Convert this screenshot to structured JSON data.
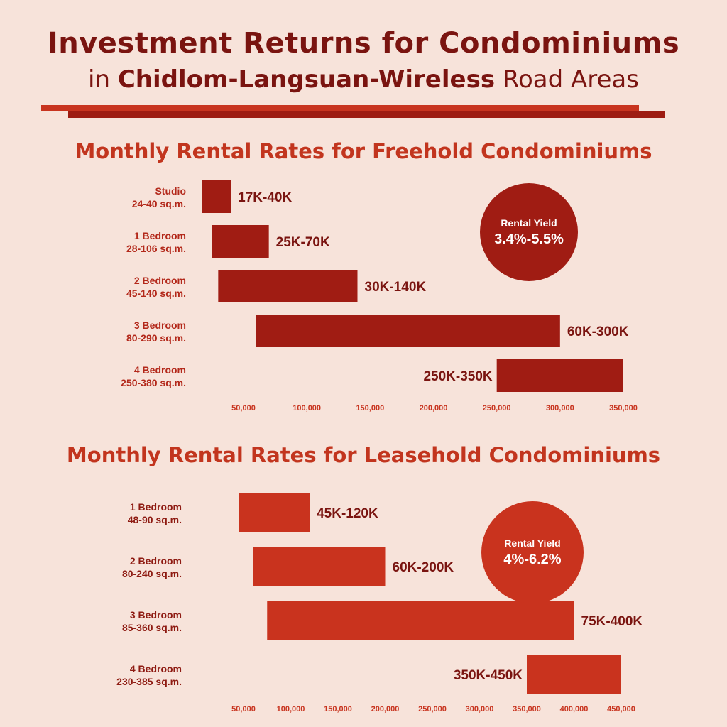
{
  "header": {
    "title_line1": "Investment Returns for Condominiums",
    "title_line2_prefix": "in ",
    "title_line2_bold": "Chidlom-Langsuan-Wireless",
    "title_line2_suffix": " Road Areas"
  },
  "colors": {
    "freehold_bar": "#a01c13",
    "leasehold_bar": "#c9331e",
    "freehold_label": "#b3281a",
    "leasehold_label": "#8e1b12",
    "value_label": "#7a1410",
    "tick": "#c8341f"
  },
  "chart_data": [
    {
      "type": "bar",
      "orientation": "horizontal-range",
      "title": "Monthly Rental Rates for Freehold Condominiums",
      "rental_yield": {
        "label": "Rental Yield",
        "value": "3.4%-5.5%"
      },
      "xlim": [
        25000,
        370000
      ],
      "x_ticks": [
        50000,
        100000,
        150000,
        200000,
        250000,
        300000,
        350000
      ],
      "x_tick_labels": [
        "50,000",
        "100,000",
        "150,000",
        "200,000",
        "250,000",
        "300,000",
        "350,000"
      ],
      "categories": [
        {
          "name": "Studio",
          "size": "24-40 sq.m."
        },
        {
          "name": "1 Bedroom",
          "size": "28-106 sq.m."
        },
        {
          "name": "2 Bedroom",
          "size": "45-140 sq.m."
        },
        {
          "name": "3 Bedroom",
          "size": "80-290 sq.m."
        },
        {
          "name": "4 Bedroom",
          "size": "250-380 sq.m."
        }
      ],
      "ranges": [
        [
          17000,
          40000
        ],
        [
          25000,
          70000
        ],
        [
          30000,
          140000
        ],
        [
          60000,
          300000
        ],
        [
          250000,
          350000
        ]
      ],
      "range_labels": [
        "17K-40K",
        "25K-70K",
        "30K-140K",
        "60K-300K",
        "250K-350K"
      ],
      "label_position": [
        "right",
        "right",
        "right",
        "right",
        "left"
      ]
    },
    {
      "type": "bar",
      "orientation": "horizontal-range",
      "title": "Monthly Rental Rates for Leasehold Condominiums",
      "rental_yield": {
        "label": "Rental Yield",
        "value": "4%-6.2%"
      },
      "xlim": [
        30000,
        470000
      ],
      "x_ticks": [
        50000,
        100000,
        150000,
        200000,
        250000,
        300000,
        350000,
        400000,
        450000
      ],
      "x_tick_labels": [
        "50,000",
        "100,000",
        "150,000",
        "200,000",
        "250,000",
        "300,000",
        "350,000",
        "400,000",
        "450,000"
      ],
      "categories": [
        {
          "name": "1 Bedroom",
          "size": "48-90 sq.m."
        },
        {
          "name": "2 Bedroom",
          "size": "80-240 sq.m."
        },
        {
          "name": "3 Bedroom",
          "size": "85-360 sq.m."
        },
        {
          "name": "4 Bedroom",
          "size": "230-385 sq.m."
        }
      ],
      "ranges": [
        [
          45000,
          120000
        ],
        [
          60000,
          200000
        ],
        [
          75000,
          400000
        ],
        [
          350000,
          450000
        ]
      ],
      "range_labels": [
        "45K-120K",
        "60K-200K",
        "75K-400K",
        "350K-450K"
      ],
      "label_position": [
        "right",
        "right",
        "right",
        "left"
      ]
    }
  ]
}
